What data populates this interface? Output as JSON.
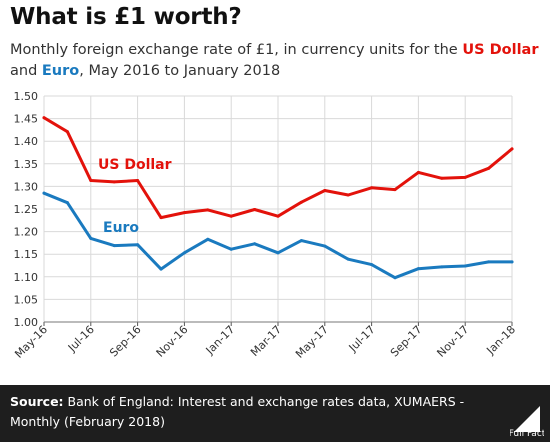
{
  "title": "What is £1 worth?",
  "subtitle": {
    "before": "Monthly foreign exchange rate of £1, in currency units for the ",
    "usd": "US Dollar",
    "mid": " and ",
    "eur": "Euro",
    "after": ", May 2016 to January 2018"
  },
  "footer": {
    "source_label": "Source:",
    "source_text": " Bank of England: Interest and exchange rates data, XUMAERS - Monthly (February 2018)",
    "logo_text": "Full Fact"
  },
  "colors": {
    "usd": "#e3120b",
    "eur": "#1a7abf",
    "grid": "#d9d9d9"
  },
  "chart_data": {
    "type": "line",
    "x": [
      "May-16",
      "Jun-16",
      "Jul-16",
      "Aug-16",
      "Sep-16",
      "Oct-16",
      "Nov-16",
      "Dec-16",
      "Jan-17",
      "Feb-17",
      "Mar-17",
      "Apr-17",
      "May-17",
      "Jun-17",
      "Jul-17",
      "Aug-17",
      "Sep-17",
      "Oct-17",
      "Nov-17",
      "Dec-17",
      "Jan-18"
    ],
    "xticks": [
      "May-16",
      "Jul-16",
      "Sep-16",
      "Nov-16",
      "Jan-17",
      "Mar-17",
      "May-17",
      "Jul-17",
      "Sep-17",
      "Nov-17",
      "Jan-18"
    ],
    "ylim": [
      1.0,
      1.5
    ],
    "yticks": [
      "1.00",
      "1.05",
      "1.10",
      "1.15",
      "1.20",
      "1.25",
      "1.30",
      "1.35",
      "1.40",
      "1.45",
      "1.50"
    ],
    "grid": true,
    "series": [
      {
        "name": "US Dollar",
        "color": "#e3120b",
        "values": [
          1.452,
          1.421,
          1.313,
          1.31,
          1.313,
          1.231,
          1.242,
          1.248,
          1.234,
          1.249,
          1.234,
          1.265,
          1.291,
          1.281,
          1.297,
          1.293,
          1.331,
          1.318,
          1.32,
          1.34,
          1.383
        ]
      },
      {
        "name": "Euro",
        "color": "#1a7abf",
        "values": [
          1.285,
          1.264,
          1.185,
          1.169,
          1.171,
          1.117,
          1.153,
          1.183,
          1.161,
          1.173,
          1.153,
          1.18,
          1.168,
          1.139,
          1.127,
          1.098,
          1.118,
          1.122,
          1.124,
          1.133,
          1.133
        ]
      }
    ]
  }
}
